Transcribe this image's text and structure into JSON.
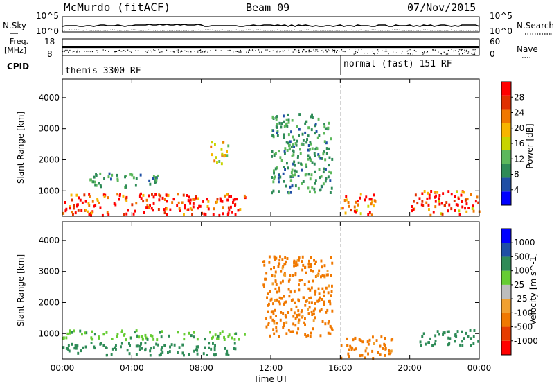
{
  "header": {
    "station": "McMurdo (fitACF)",
    "beam": "Beam 09",
    "date": "07/Nov/2015"
  },
  "status_panel": {
    "nsky_label": "N.Sky",
    "nsearch_label": "N.Search",
    "freq_label_1": "Freq.",
    "freq_label_2": "[MHz]",
    "nave_label": "Nave",
    "cpid_label": "CPID",
    "nsky_ticks": [
      "10^5",
      "10^0"
    ],
    "nsearch_ticks": [
      "10^5",
      "10^0"
    ],
    "freq_ticks": [
      "18",
      "8"
    ],
    "nave_ticks": [
      "60",
      "0"
    ],
    "cpid_segments": [
      {
        "label": "themis 3300 RF",
        "start_hour": 0,
        "end_hour": 16
      },
      {
        "label": "normal (fast) 151 RF",
        "start_hour": 16,
        "end_hour": 24
      }
    ]
  },
  "colors": {
    "power": [
      "#0000ff",
      "#1f4fa5",
      "#2e8b57",
      "#5cb85c",
      "#c8d400",
      "#f7b500",
      "#f07800",
      "#e03000",
      "#ff0000"
    ],
    "velocity": [
      "#ff0000",
      "#e63c00",
      "#f07800",
      "#f0a030",
      "#bdbdbd",
      "#66cc33",
      "#2e8b57",
      "#1f4fa5",
      "#0000ff"
    ]
  },
  "chart_data": [
    {
      "type": "heatmap",
      "name": "power",
      "xlabel": "Time UT",
      "ylabel": "Slant Range [km]",
      "x_ticks": [
        "00:00",
        "04:00",
        "08:00",
        "12:00",
        "16:00",
        "20:00",
        "00:00"
      ],
      "xlim_hours": [
        0,
        24
      ],
      "y_ticks": [
        1000,
        2000,
        3000,
        4000
      ],
      "ylim": [
        180,
        4600
      ],
      "colorbar": {
        "label": "Power [dB]",
        "ticks": [
          4,
          8,
          12,
          16,
          20,
          24,
          28
        ],
        "range": [
          0,
          32
        ]
      },
      "features": [
        {
          "hours": [
            0,
            10.5
          ],
          "range_km": [
            200,
            900
          ],
          "value_db": 30
        },
        {
          "hours": [
            16,
            18
          ],
          "range_km": [
            200,
            900
          ],
          "value_db": 26
        },
        {
          "hours": [
            20,
            24
          ],
          "range_km": [
            200,
            1000
          ],
          "value_db": 28
        },
        {
          "hours": [
            1.5,
            5.5
          ],
          "range_km": [
            1100,
            1550
          ],
          "value_db": 10
        },
        {
          "hours": [
            8.5,
            9.5
          ],
          "range_km": [
            1800,
            2600
          ],
          "value_db": 18
        },
        {
          "hours": [
            12,
            15.5
          ],
          "range_km": [
            900,
            3500
          ],
          "value_db": 10
        }
      ]
    },
    {
      "type": "heatmap",
      "name": "velocity",
      "xlabel": "Time UT",
      "ylabel": "Slant Range [km]",
      "x_ticks": [
        "00:00",
        "04:00",
        "08:00",
        "12:00",
        "16:00",
        "20:00",
        "00:00"
      ],
      "xlim_hours": [
        0,
        24
      ],
      "y_ticks": [
        1000,
        2000,
        3000,
        4000
      ],
      "ylim": [
        180,
        4600
      ],
      "colorbar": {
        "label": "Velocity [m s^-1]",
        "ticks": [
          -1000,
          -500,
          -100,
          -25,
          25,
          100,
          500,
          1000
        ]
      },
      "features": [
        {
          "hours": [
            0,
            10.5
          ],
          "range_km": [
            800,
            1100
          ],
          "value_ms": 80
        },
        {
          "hours": [
            0,
            10
          ],
          "range_km": [
            300,
            700
          ],
          "value_ms": 300
        },
        {
          "hours": [
            11.5,
            15.5
          ],
          "range_km": [
            900,
            3500
          ],
          "value_ms": -150
        },
        {
          "hours": [
            16,
            19
          ],
          "range_km": [
            200,
            900
          ],
          "value_ms": -150
        },
        {
          "hours": [
            20.5,
            24
          ],
          "range_km": [
            600,
            1100
          ],
          "value_ms": 300
        }
      ]
    }
  ]
}
